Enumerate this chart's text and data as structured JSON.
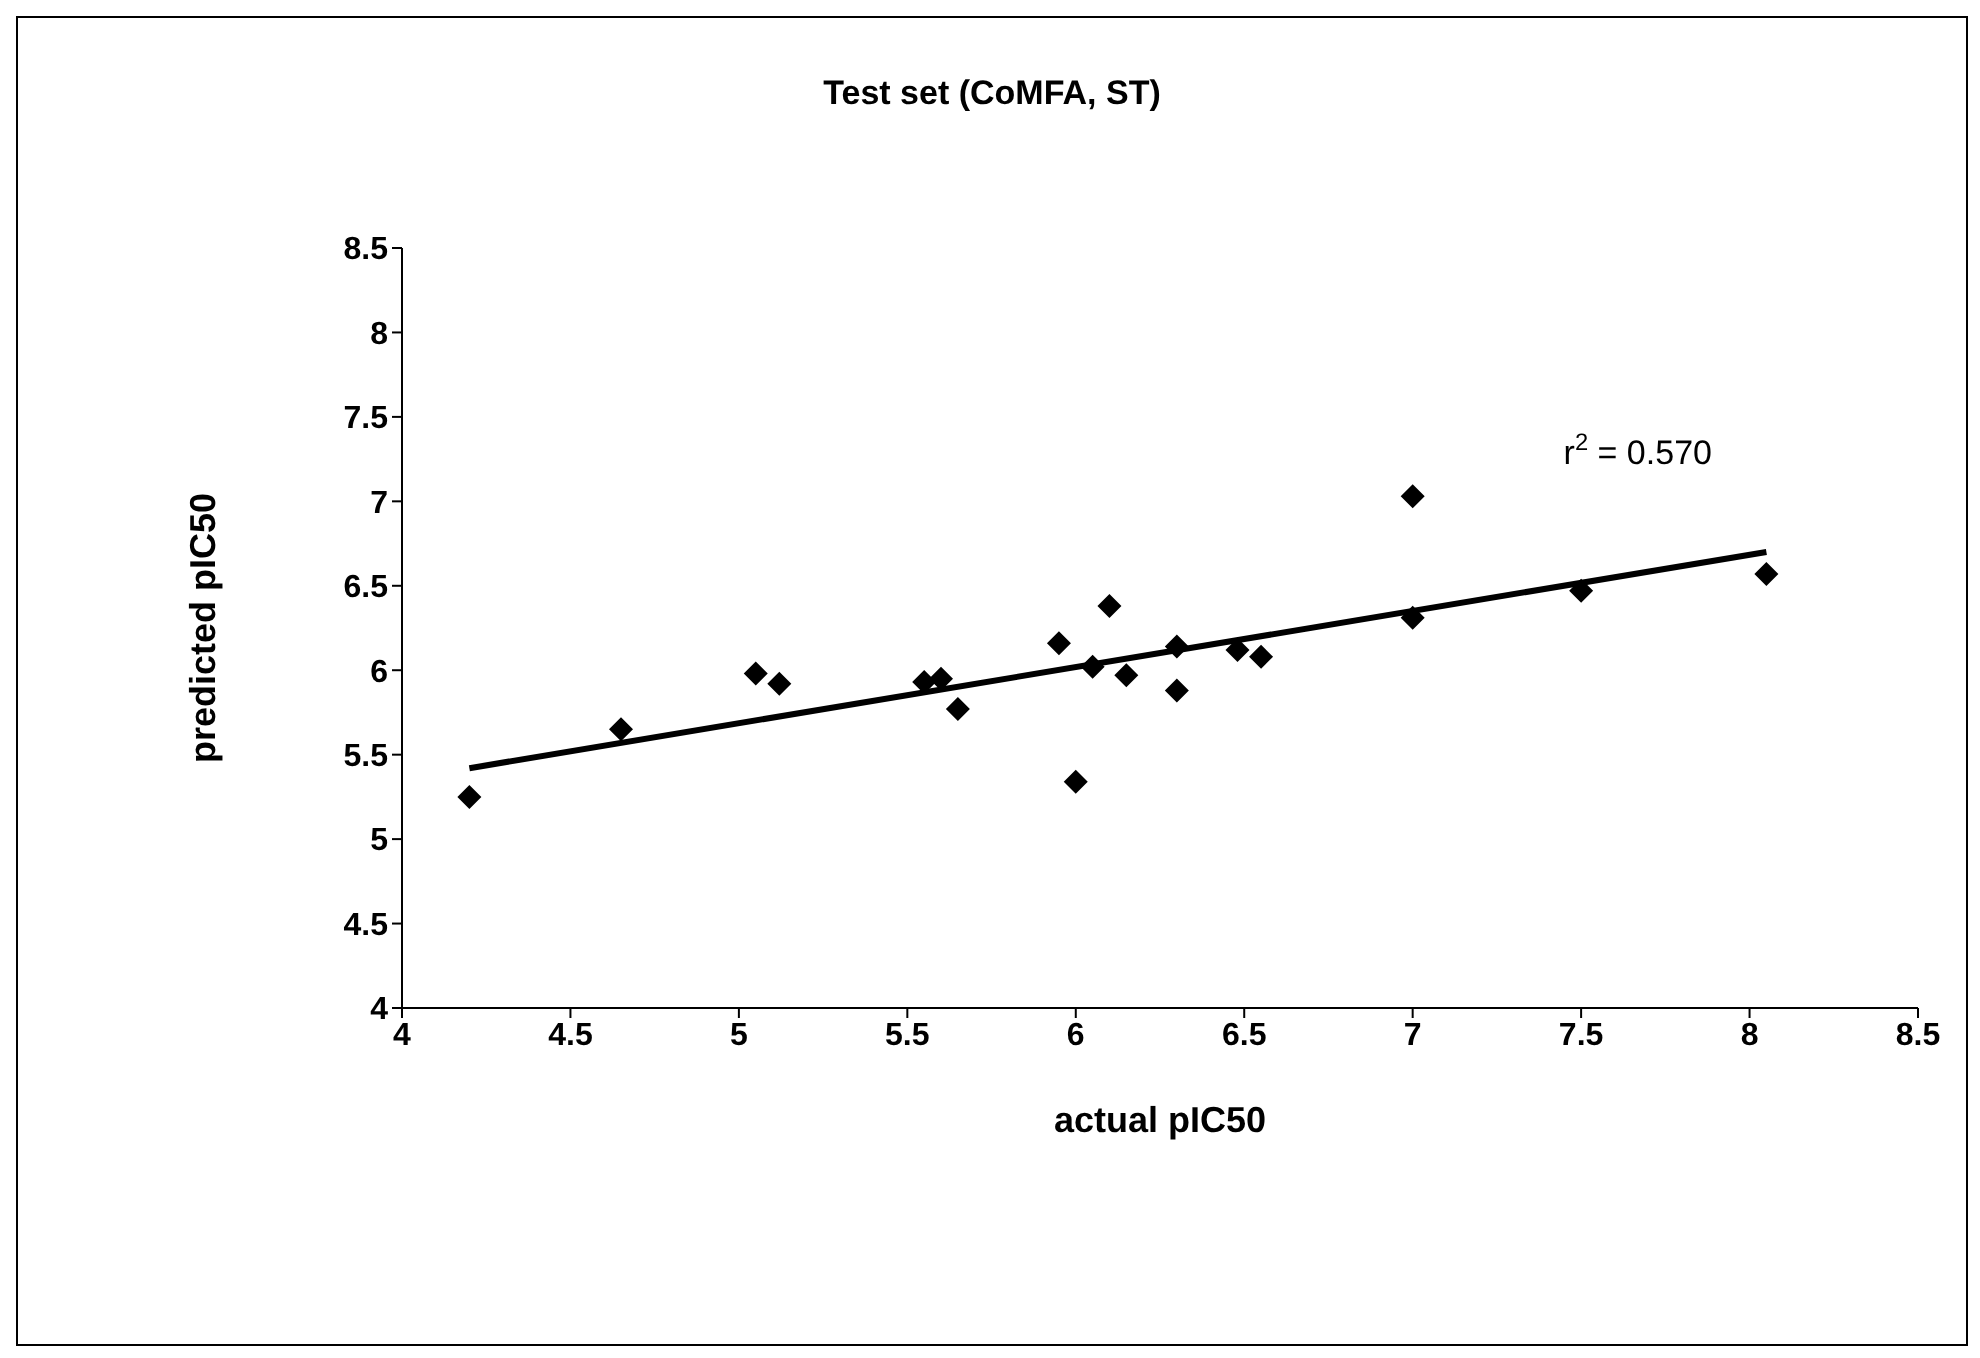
{
  "chart_data": {
    "type": "scatter",
    "title": "Test set (CoMFA, ST)",
    "xlabel": "actual pIC50",
    "ylabel": "predicted pIC50",
    "xlim": [
      4,
      8.5
    ],
    "xticks": [
      4,
      4.5,
      5,
      5.5,
      6,
      6.5,
      7,
      7.5,
      8,
      8.5
    ],
    "ylim": [
      4,
      8.5
    ],
    "yticks": [
      4,
      4.5,
      5,
      5.5,
      6,
      6.5,
      7,
      7.5,
      8,
      8.5
    ],
    "grid": false,
    "marker": "diamond",
    "annotations": [
      "r$^{2}$ = 0.570"
    ],
    "series": [
      {
        "color": "#000000",
        "x": [
          4.2,
          4.65,
          5.05,
          5.12,
          5.55,
          5.6,
          5.65,
          5.95,
          6.0,
          6.1,
          6.05,
          6.15,
          6.3,
          6.3,
          6.48,
          6.55,
          7.0,
          7.0,
          7.5,
          8.05
        ],
        "values": [
          5.25,
          5.65,
          5.98,
          5.92,
          5.93,
          5.95,
          5.77,
          6.16,
          5.34,
          6.38,
          6.02,
          5.97,
          6.14,
          5.88,
          6.12,
          6.08,
          7.03,
          6.31,
          6.47,
          6.57
        ]
      },
      {
        "type": "line",
        "marker": "none",
        "line_style": "solid",
        "color": "#000000",
        "x": [
          4.2,
          8.05
        ],
        "values": [
          5.42,
          6.7
        ]
      }
    ]
  }
}
